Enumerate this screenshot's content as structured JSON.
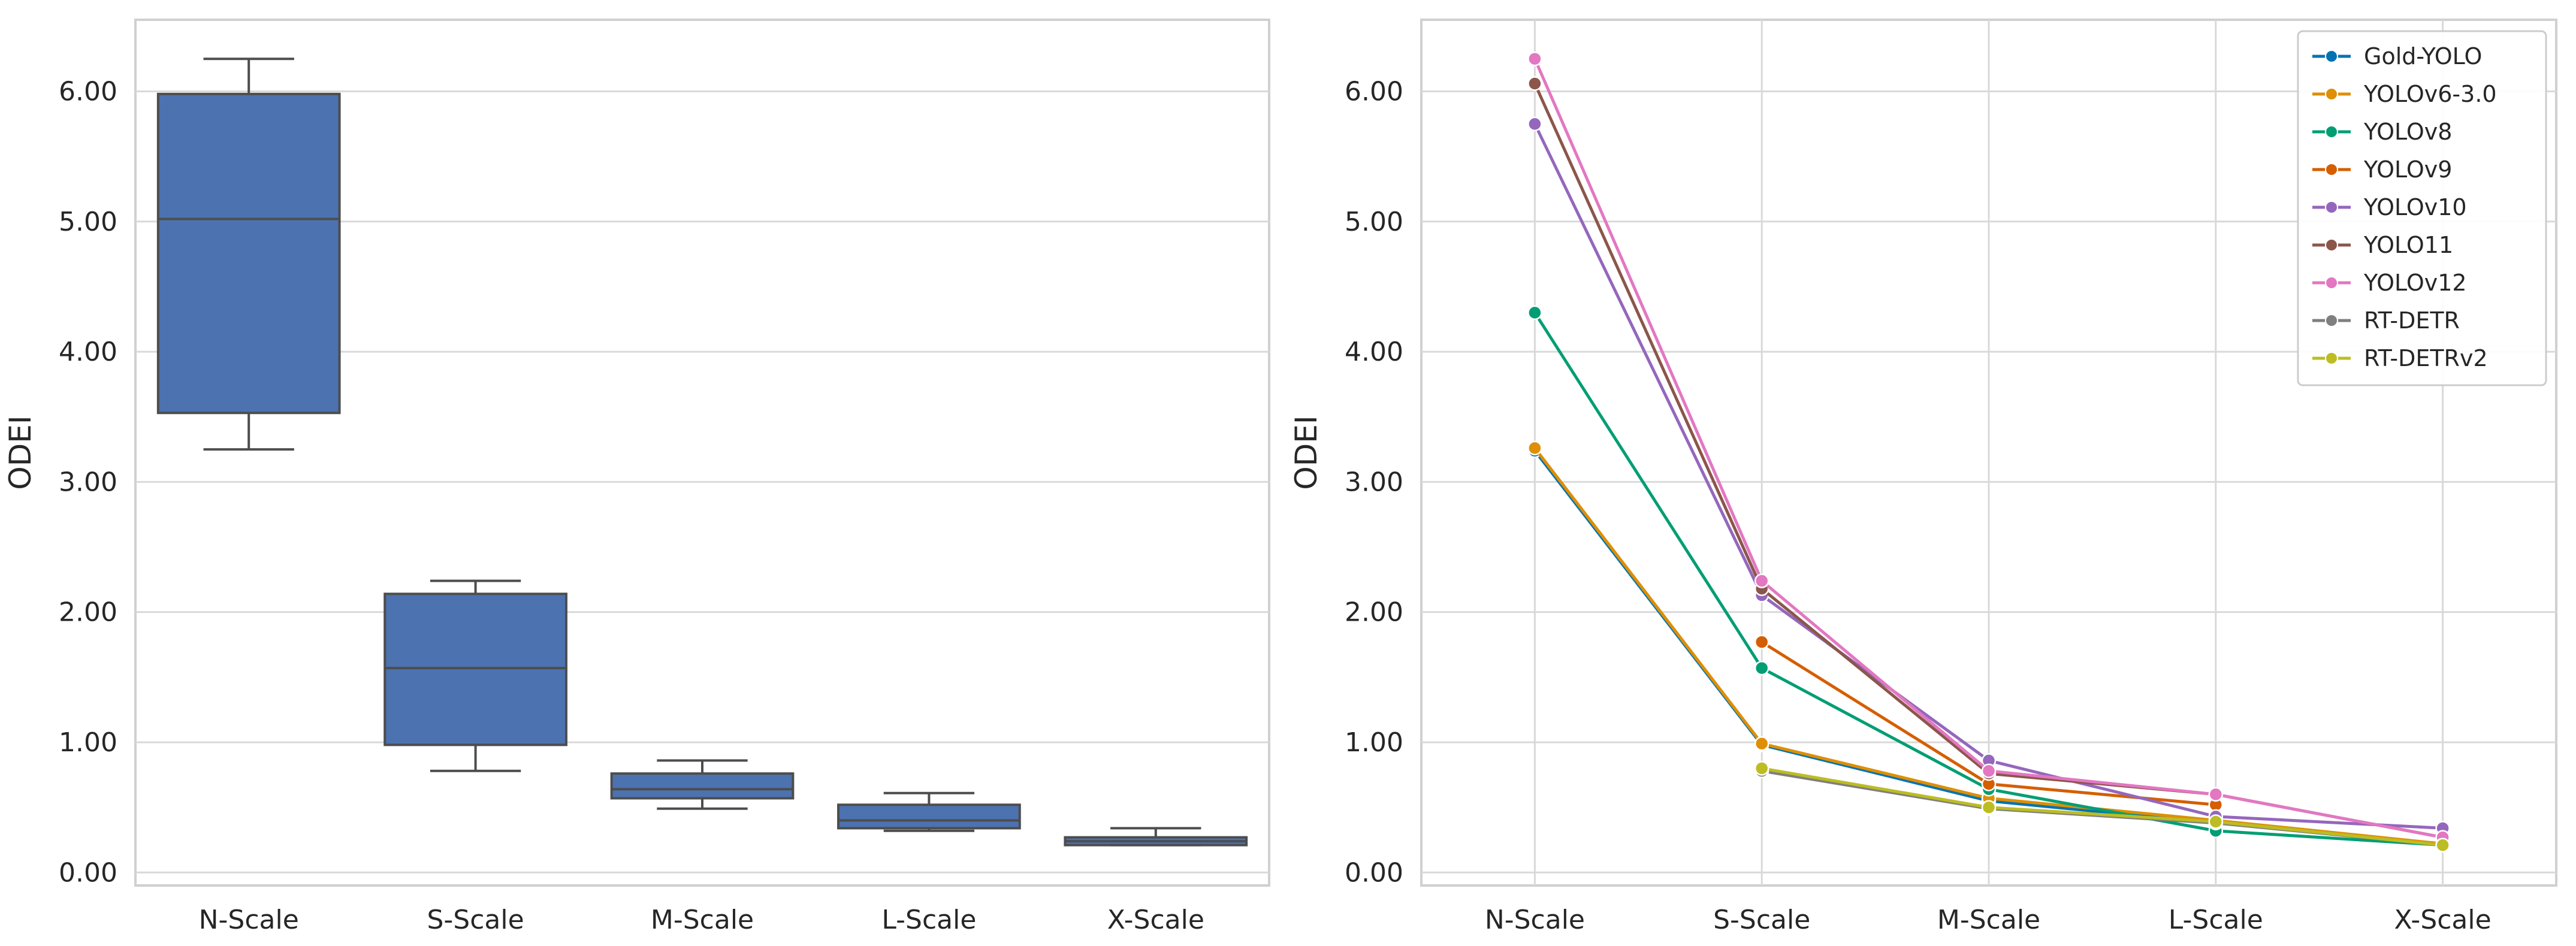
{
  "chart_data": [
    {
      "type": "box",
      "title": "",
      "xlabel": "",
      "ylabel": "ODEI",
      "categories": [
        "N-Scale",
        "S-Scale",
        "M-Scale",
        "L-Scale",
        "X-Scale"
      ],
      "yticks": [
        "0.00",
        "1.00",
        "2.00",
        "3.00",
        "4.00",
        "5.00",
        "6.00"
      ],
      "ylim": [
        -0.1,
        6.55
      ],
      "grid": true,
      "box_color": "#4c72b0",
      "boxes": [
        {
          "category": "N-Scale",
          "whisker_low": 3.25,
          "q1": 3.53,
          "median": 5.02,
          "q3": 5.98,
          "whisker_high": 6.25
        },
        {
          "category": "S-Scale",
          "whisker_low": 0.78,
          "q1": 0.98,
          "median": 1.57,
          "q3": 2.14,
          "whisker_high": 2.24
        },
        {
          "category": "M-Scale",
          "whisker_low": 0.49,
          "q1": 0.57,
          "median": 0.64,
          "q3": 0.76,
          "whisker_high": 0.86
        },
        {
          "category": "L-Scale",
          "whisker_low": 0.32,
          "q1": 0.34,
          "median": 0.4,
          "q3": 0.52,
          "whisker_high": 0.61
        },
        {
          "category": "X-Scale",
          "whisker_low": 0.21,
          "q1": 0.21,
          "median": 0.24,
          "q3": 0.27,
          "whisker_high": 0.34
        }
      ]
    },
    {
      "type": "line",
      "title": "",
      "xlabel": "",
      "ylabel": "ODEI",
      "categories": [
        "N-Scale",
        "S-Scale",
        "M-Scale",
        "L-Scale",
        "X-Scale"
      ],
      "yticks": [
        "0.00",
        "1.00",
        "2.00",
        "3.00",
        "4.00",
        "5.00",
        "6.00"
      ],
      "ylim": [
        -0.1,
        6.55
      ],
      "grid": true,
      "legend_position": "top-right",
      "series": [
        {
          "name": "Gold-YOLO",
          "color": "#0173b2",
          "values": [
            3.24,
            0.98,
            0.55,
            0.38,
            0.22
          ]
        },
        {
          "name": "YOLOv6-3.0",
          "color": "#de8f05",
          "values": [
            3.26,
            0.99,
            0.57,
            0.4,
            0.22
          ]
        },
        {
          "name": "YOLOv8",
          "color": "#029e73",
          "values": [
            4.3,
            1.57,
            0.64,
            0.32,
            0.21
          ]
        },
        {
          "name": "YOLOv9",
          "color": "#d55e00",
          "values": [
            null,
            1.77,
            0.68,
            0.52,
            null
          ]
        },
        {
          "name": "YOLOv10",
          "color": "#9467bd",
          "values": [
            5.75,
            2.13,
            0.86,
            0.43,
            0.34
          ]
        },
        {
          "name": "YOLO11",
          "color": "#8c564b",
          "values": [
            6.06,
            2.18,
            0.76,
            0.6,
            0.27
          ]
        },
        {
          "name": "YOLOv12",
          "color": "#e377c2",
          "values": [
            6.25,
            2.24,
            0.78,
            0.6,
            0.27
          ]
        },
        {
          "name": "RT-DETR",
          "color": "#7f7f7f",
          "values": [
            null,
            0.78,
            0.49,
            0.38,
            0.21
          ]
        },
        {
          "name": "RT-DETRv2",
          "color": "#bcbd22",
          "values": [
            null,
            0.8,
            0.5,
            0.39,
            0.21
          ]
        }
      ]
    }
  ]
}
